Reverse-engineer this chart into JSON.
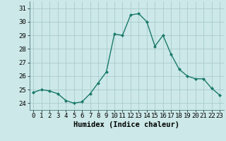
{
  "x": [
    0,
    1,
    2,
    3,
    4,
    5,
    6,
    7,
    8,
    9,
    10,
    11,
    12,
    13,
    14,
    15,
    16,
    17,
    18,
    19,
    20,
    21,
    22,
    23
  ],
  "y": [
    24.8,
    25.0,
    24.9,
    24.7,
    24.2,
    24.0,
    24.1,
    24.7,
    25.5,
    26.3,
    29.1,
    29.0,
    30.5,
    30.6,
    30.0,
    28.2,
    29.0,
    27.6,
    26.5,
    26.0,
    25.8,
    25.8,
    25.1,
    24.6
  ],
  "line_color": "#1a7a6a",
  "marker_color": "#1a7a6a",
  "bg_color": "#cce8e8",
  "grid_color": "#aacccc",
  "xlabel": "Humidex (Indice chaleur)",
  "ylim": [
    23.5,
    31.5
  ],
  "xlim": [
    -0.5,
    23.5
  ],
  "yticks": [
    24,
    25,
    26,
    27,
    28,
    29,
    30,
    31
  ],
  "xticks": [
    0,
    1,
    2,
    3,
    4,
    5,
    6,
    7,
    8,
    9,
    10,
    11,
    12,
    13,
    14,
    15,
    16,
    17,
    18,
    19,
    20,
    21,
    22,
    23
  ],
  "tick_fontsize": 6.5,
  "xlabel_fontsize": 7.5
}
